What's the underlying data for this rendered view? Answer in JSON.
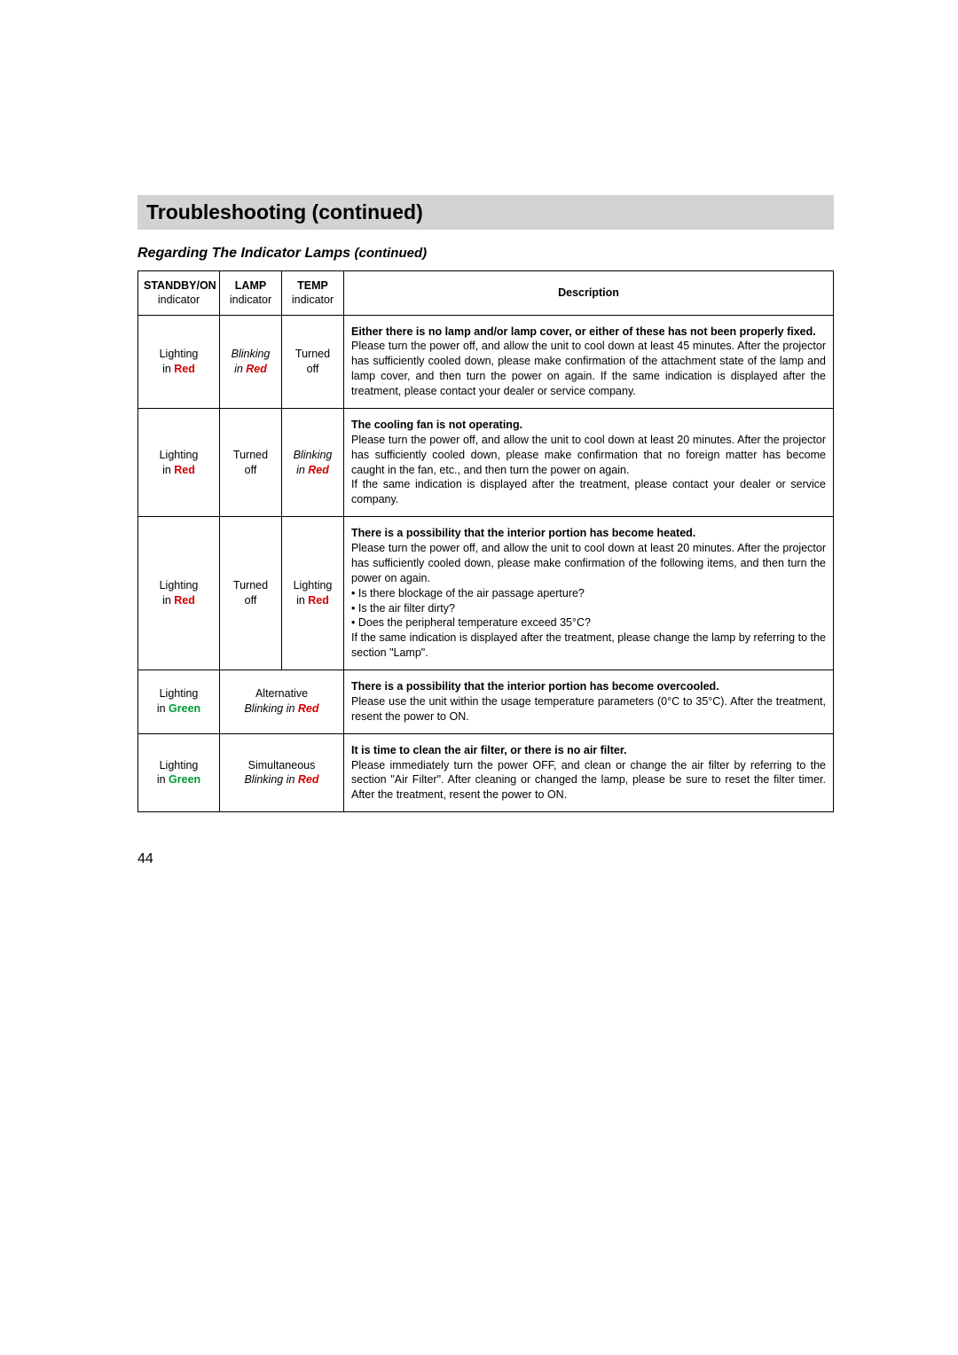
{
  "title": "Troubleshooting (continued)",
  "subtitle_main": "Regarding The Indicator Lamps ",
  "subtitle_cont": "(continued)",
  "headers": {
    "c1a": "STANDBY/ON",
    "c1b": "indicator",
    "c2a": "LAMP",
    "c2b": "indicator",
    "c3a": "TEMP",
    "c3b": "indicator",
    "c4": "Description"
  },
  "ind": {
    "lighting": "Lighting",
    "in_": "in ",
    "blinking": "Blinking",
    "turned": "Turned",
    "off": "off",
    "red": "Red",
    "green": "Green",
    "alternative": "Alternative",
    "blinking_in": "Blinking in ",
    "simultaneous": "Simultaneous"
  },
  "rows": {
    "r1": {
      "desc_bold": "Either there is no lamp and/or lamp cover, or either of these has not been properly fixed.",
      "desc_body": "Please turn the power off, and allow the unit to cool down at least 45 minutes. After the projector has sufficiently cooled down, please make confirmation of the attachment state of the lamp and lamp cover, and then turn the power on again. If the same indication is displayed after the treatment, please contact your dealer or service company."
    },
    "r2": {
      "desc_bold": "The cooling fan is not operating.",
      "desc_body1": "Please turn the power off, and allow the unit to cool down at least 20 minutes. After the projector has sufficiently cooled down, please make confirmation that no foreign matter has become caught in the fan, etc., and then turn the power on again.",
      "desc_body2": "If the same indication is displayed after the treatment, please contact your dealer or service company."
    },
    "r3": {
      "desc_bold": "There is a possibility that the interior portion has become heated.",
      "desc_body1": "Please turn the power off, and allow the unit to cool down at least 20 minutes. After the projector has sufficiently cooled down, please make confirmation of the following items, and then turn the power on again.",
      "li1": "Is there blockage of the air passage aperture?",
      "li2": "Is the air filter dirty?",
      "li3": "Does the peripheral temperature exceed 35°C?",
      "desc_body2": "If the same indication is displayed after the treatment, please change the lamp by referring to the section \"Lamp\"."
    },
    "r4": {
      "desc_bold": "There is a possibility that the interior portion has become overcooled.",
      "desc_body": "Please use the unit within the usage temperature parameters (0°C to 35°C). After the treatment, resent the power to ON."
    },
    "r5": {
      "desc_bold": "It is time to clean the air filter, or there is no air filter.",
      "desc_body": "Please immediately turn the power OFF, and clean or change the air filter by referring to the section \"Air Filter\". After cleaning or changed the lamp, please be sure to reset the filter timer. After the treatment, resent the power to ON."
    }
  },
  "page_number": "44"
}
